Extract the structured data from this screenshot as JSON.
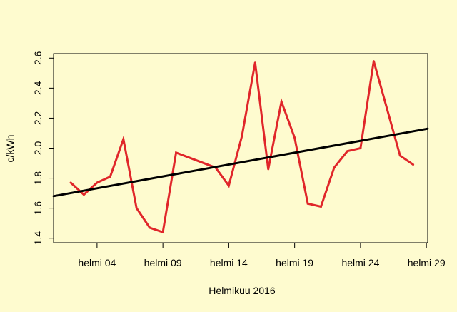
{
  "colors": {
    "background": "#fefbcf",
    "series_line": "#e0262a",
    "trend_line": "#000000",
    "axis": "#000000"
  },
  "chart_data": {
    "type": "line",
    "title": "",
    "xlabel": "Helmikuu 2016",
    "ylabel": "c/kWh",
    "x_tick_labels": [
      "helmi 04",
      "helmi 09",
      "helmi 14",
      "helmi 19",
      "helmi 24",
      "helmi 29"
    ],
    "x_tick_days": [
      4,
      9,
      14,
      19,
      24,
      29
    ],
    "xlim_days": [
      0.7,
      29.1
    ],
    "ylim": [
      1.37,
      2.63
    ],
    "y_ticks": [
      1.4,
      1.6,
      1.8,
      2.0,
      2.2,
      2.4,
      2.6
    ],
    "y_tick_labels": [
      "1.4",
      "1.6",
      "1.8",
      "2.0",
      "2.2",
      "2.4",
      "2.6"
    ],
    "grid": false,
    "legend": "none",
    "series": [
      {
        "x_days": [
          2,
          3,
          4,
          5,
          6,
          7,
          8,
          9,
          10,
          13,
          14,
          15,
          16,
          17,
          18,
          19,
          20,
          21,
          22,
          23,
          24,
          25,
          27,
          28
        ],
        "values": [
          1.77,
          1.69,
          1.77,
          1.81,
          2.06,
          1.6,
          1.47,
          1.44,
          1.97,
          1.87,
          1.75,
          2.08,
          2.57,
          1.86,
          2.31,
          2.07,
          1.63,
          1.61,
          1.87,
          1.98,
          2.0,
          2.58,
          1.95,
          1.89
        ]
      },
      {
        "x_days": [
          0.7,
          29.1
        ],
        "values": [
          1.68,
          2.13
        ]
      }
    ]
  }
}
